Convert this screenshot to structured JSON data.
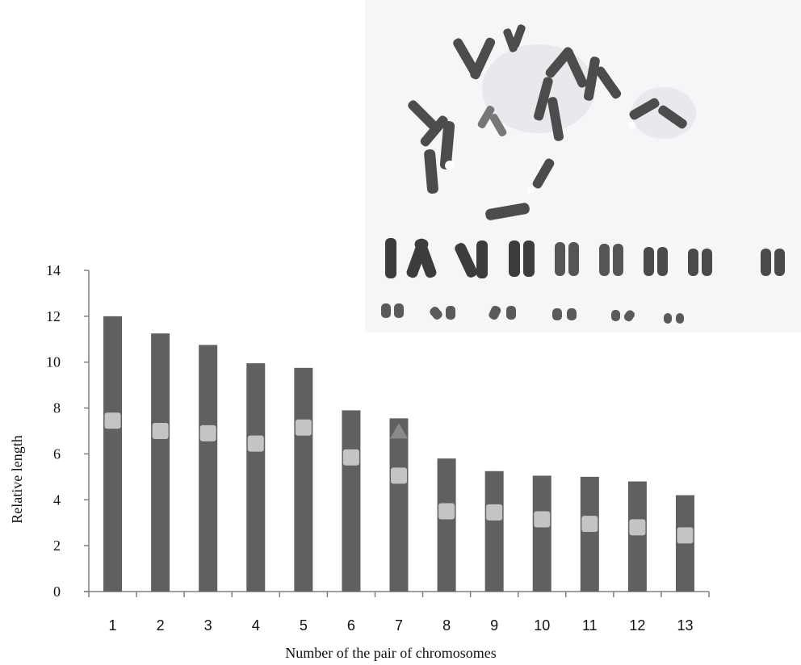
{
  "chart_data": {
    "type": "bar",
    "title": "",
    "xlabel": "Number of the pair of chromosomes",
    "ylabel": "Relative length",
    "ylim": [
      0,
      14
    ],
    "yticks": [
      0,
      2,
      4,
      6,
      8,
      10,
      12,
      14
    ],
    "categories": [
      "1",
      "2",
      "3",
      "4",
      "5",
      "6",
      "7",
      "8",
      "9",
      "10",
      "11",
      "12",
      "13"
    ],
    "series": [
      {
        "values": [
          12.0,
          11.25,
          10.75,
          9.95,
          9.75,
          7.9,
          7.55,
          5.8,
          5.25,
          5.05,
          5.0,
          4.8,
          4.2
        ],
        "color": "#606060",
        "marker": "bar"
      },
      {
        "values": [
          7.45,
          7.0,
          6.9,
          6.45,
          7.15,
          5.85,
          5.05,
          3.5,
          3.45,
          3.15,
          2.95,
          2.8,
          2.45
        ],
        "color": "#c4c4c4",
        "marker": "square"
      },
      {
        "values": [
          null,
          null,
          null,
          null,
          null,
          null,
          6.95,
          null,
          null,
          null,
          null,
          null,
          null
        ],
        "color": "#8a8a8a",
        "marker": "triangle"
      }
    ],
    "grid": false,
    "legend": "none"
  },
  "image": {
    "description_icon": "karyotype-micrograph-icon"
  }
}
